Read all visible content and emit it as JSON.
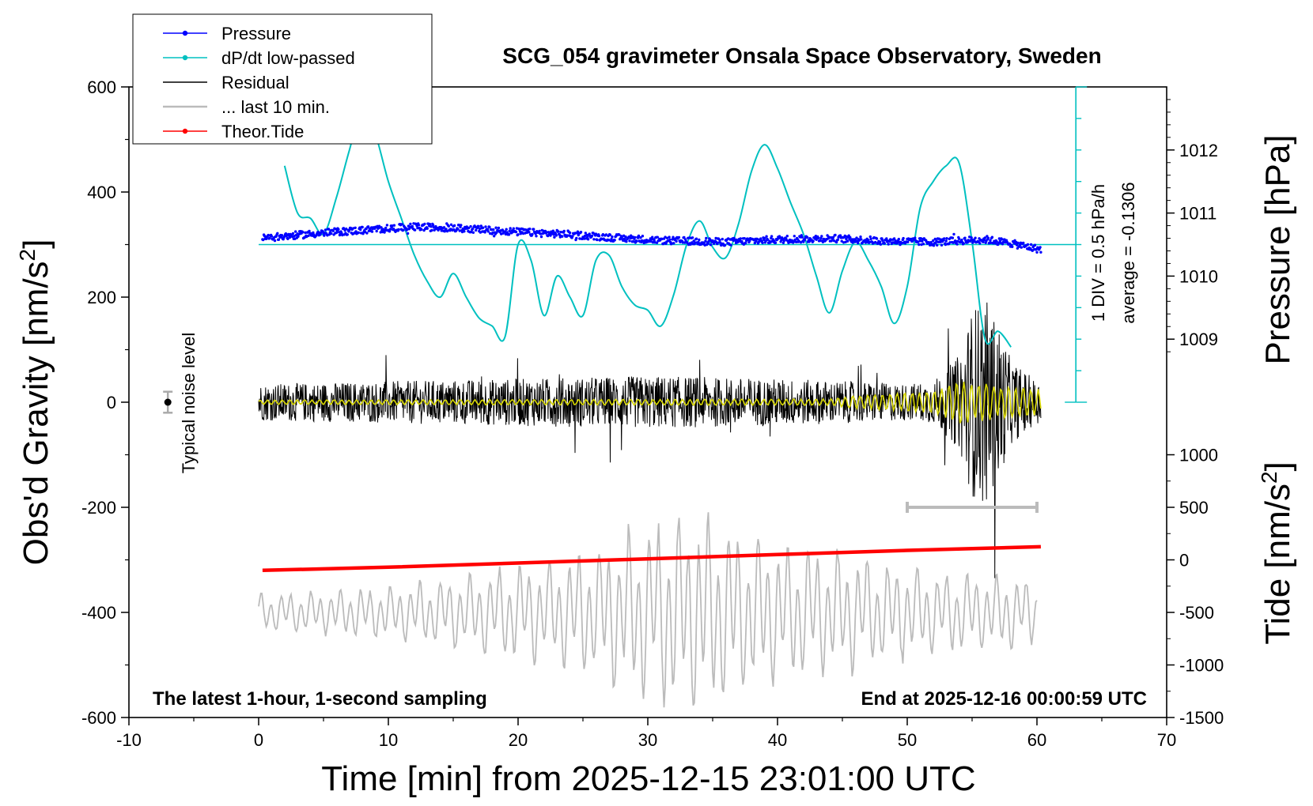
{
  "chart_data": {
    "type": "line",
    "title": "SCG_054 gravimeter Onsala Space Observatory, Sweden",
    "xlabel": "Time [min] from 2025-12-15 23:01:00 UTC",
    "ylabel": "Obs'd Gravity [nm/s",
    "ylabel_sup": "2",
    "ylabel_end": "]",
    "y_right_top_label": "Pressure [hPa]",
    "y_right_bottom_label": "Tide [nm/s",
    "y_right_bottom_sup": "2",
    "y_right_bottom_end": "]",
    "xlim": [
      -10,
      70
    ],
    "ylim": [
      -600,
      600
    ],
    "x_ticks": [
      -10,
      0,
      10,
      20,
      30,
      40,
      50,
      60,
      70
    ],
    "y_ticks": [
      -600,
      -400,
      -200,
      0,
      200,
      400,
      600
    ],
    "pressure_ticks": [
      1009,
      1010,
      1011,
      1012
    ],
    "pressure_axis_map": {
      "hPa_per_gravity_unit": 0.0083333,
      "hPa_at_gravity_300": 1010.5
    },
    "tide_ticks": [
      -1500,
      -1000,
      -500,
      0,
      500,
      1000
    ],
    "tide_axis_map": {
      "tide_units_per_gravity_unit": 5,
      "gravity_at_tide_zero": -300
    },
    "grid": false,
    "legend": {
      "placement": "top-left",
      "entries": [
        {
          "label": "Pressure",
          "color": "#0000ff",
          "marker": true
        },
        {
          "label": "dP/dt low-passed",
          "color": "#00c0c0",
          "marker": true
        },
        {
          "label": "Residual",
          "color": "#000000",
          "marker": false
        },
        {
          "label": "... last 10 min.",
          "color": "#bbbbbb",
          "marker": false
        },
        {
          "label": "Theor.Tide",
          "color": "#ff0000",
          "marker": true
        }
      ]
    },
    "dpdt_scale": {
      "label": "1 DIV = 0.5 hPa/h",
      "average_label": "average = -0.1306",
      "x": 63,
      "y_range": [
        0,
        600
      ],
      "y_zero_line": 300
    },
    "noise_marker": {
      "label": "Typical noise level",
      "x": -7,
      "y": 0,
      "err": 20
    },
    "last10_bar": {
      "x_range": [
        50,
        60
      ],
      "y": -200
    },
    "notes": {
      "left": "The latest 1-hour, 1-second sampling",
      "right": "End at 2025-12-16 00:00:59 UTC"
    },
    "series": [
      {
        "name": "Pressure",
        "color": "#0000ff",
        "axis": "pressure",
        "x": [
          0.3,
          3,
          6,
          9,
          12,
          14,
          17,
          20,
          24,
          28,
          32,
          36,
          40,
          44,
          48,
          52,
          56,
          58,
          60.3
        ],
        "values": [
          1010.6,
          1010.65,
          1010.7,
          1010.74,
          1010.78,
          1010.77,
          1010.74,
          1010.7,
          1010.66,
          1010.6,
          1010.56,
          1010.54,
          1010.58,
          1010.6,
          1010.56,
          1010.54,
          1010.58,
          1010.52,
          1010.42
        ]
      },
      {
        "name": "dP/dt low-passed",
        "color": "#00c0c0",
        "axis": "gravity",
        "x": [
          2,
          3,
          4,
          5,
          6,
          7,
          8,
          9,
          10,
          11,
          12,
          13,
          14,
          15,
          16,
          17,
          18,
          19,
          20,
          21,
          22,
          23,
          24,
          25,
          26,
          27,
          28,
          29,
          30,
          31,
          32,
          33,
          34,
          35,
          36,
          37,
          38,
          39,
          40,
          41,
          42,
          43,
          44,
          45,
          46,
          47,
          48,
          49,
          50,
          51,
          52,
          53,
          54,
          55,
          56,
          57,
          58
        ],
        "values": [
          450,
          360,
          350,
          320,
          390,
          480,
          560,
          510,
          420,
          350,
          280,
          230,
          200,
          245,
          200,
          160,
          145,
          125,
          300,
          270,
          165,
          240,
          200,
          165,
          270,
          280,
          220,
          185,
          175,
          145,
          205,
          300,
          345,
          295,
          275,
          340,
          440,
          490,
          445,
          380,
          320,
          240,
          170,
          250,
          305,
          270,
          220,
          150,
          220,
          370,
          420,
          450,
          455,
          305,
          120,
          135,
          105
        ]
      },
      {
        "name": "Residual",
        "color": "#000000",
        "axis": "gravity",
        "x_range": [
          0,
          60.3
        ],
        "points": 1800,
        "envelope_x": [
          0,
          10,
          20,
          30,
          40,
          45,
          50,
          52,
          54,
          55,
          56,
          57,
          58,
          60
        ],
        "envelope": [
          35,
          40,
          45,
          50,
          45,
          40,
          35,
          40,
          90,
          180,
          200,
          150,
          80,
          40
        ]
      },
      {
        "name": "Residual low-passed",
        "color": "#d8d800",
        "axis": "gravity",
        "x_range": [
          0,
          60.3
        ],
        "envelope_x": [
          0,
          44,
          46,
          52,
          54,
          56,
          58,
          60
        ],
        "envelope": [
          4,
          6,
          12,
          20,
          40,
          35,
          28,
          25
        ]
      },
      {
        "name": "... last 10 min.",
        "color": "#bbbbbb",
        "axis": "gravity",
        "x_range": [
          0,
          60
        ],
        "center": -400,
        "envelope_x": [
          0,
          10,
          20,
          24,
          28,
          30,
          32,
          34,
          36,
          40,
          44,
          48,
          52,
          56,
          60
        ],
        "envelope": [
          35,
          50,
          90,
          110,
          150,
          170,
          200,
          200,
          170,
          140,
          120,
          100,
          80,
          75,
          65
        ]
      },
      {
        "name": "Theor.Tide",
        "color": "#ff0000",
        "axis": "tide",
        "x": [
          0.3,
          10,
          20,
          30,
          40,
          50,
          60.3
        ],
        "values": [
          -100,
          -70,
          -30,
          10,
          50,
          90,
          125
        ]
      }
    ]
  }
}
